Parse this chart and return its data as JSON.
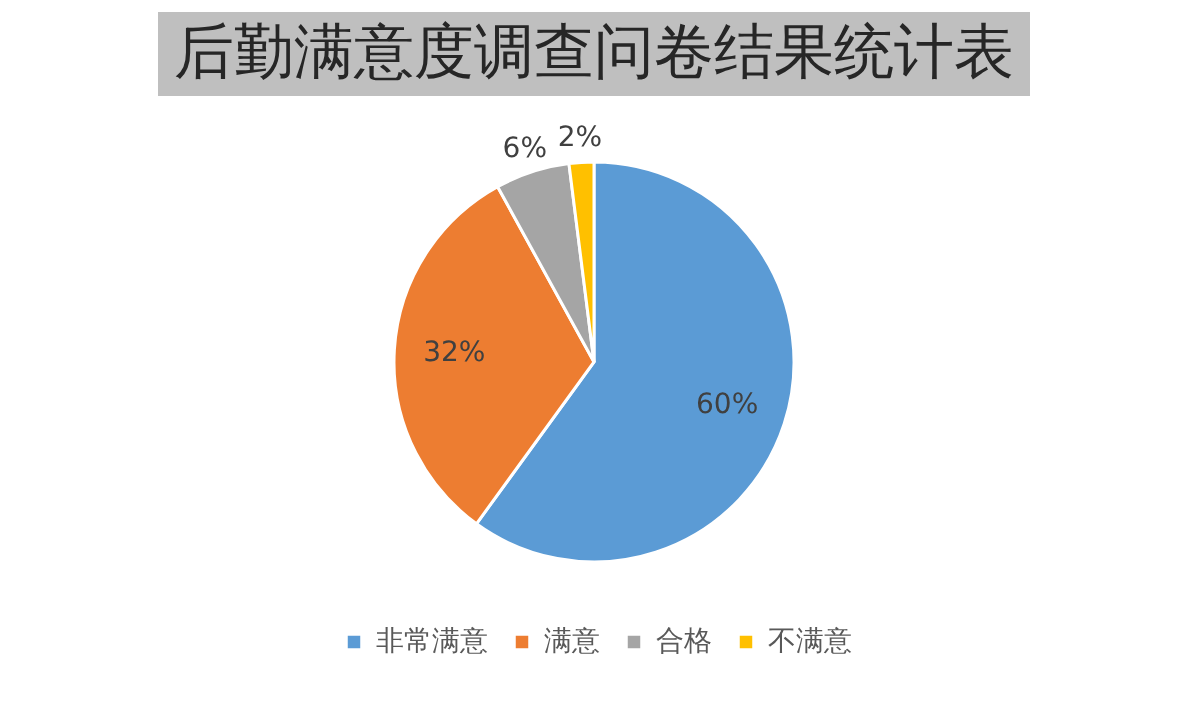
{
  "chart_data": {
    "type": "pie",
    "title": "后勤满意度调查问卷结果统计表",
    "categories": [
      "非常满意",
      "满意",
      "合格",
      "不满意"
    ],
    "values": [
      60,
      32,
      6,
      2
    ],
    "colors": [
      "#5b9bd5",
      "#ed7d31",
      "#a5a5a5",
      "#ffc000"
    ],
    "value_labels": [
      "60%",
      "32%",
      "6%",
      "2%"
    ],
    "legend": "bottom"
  }
}
